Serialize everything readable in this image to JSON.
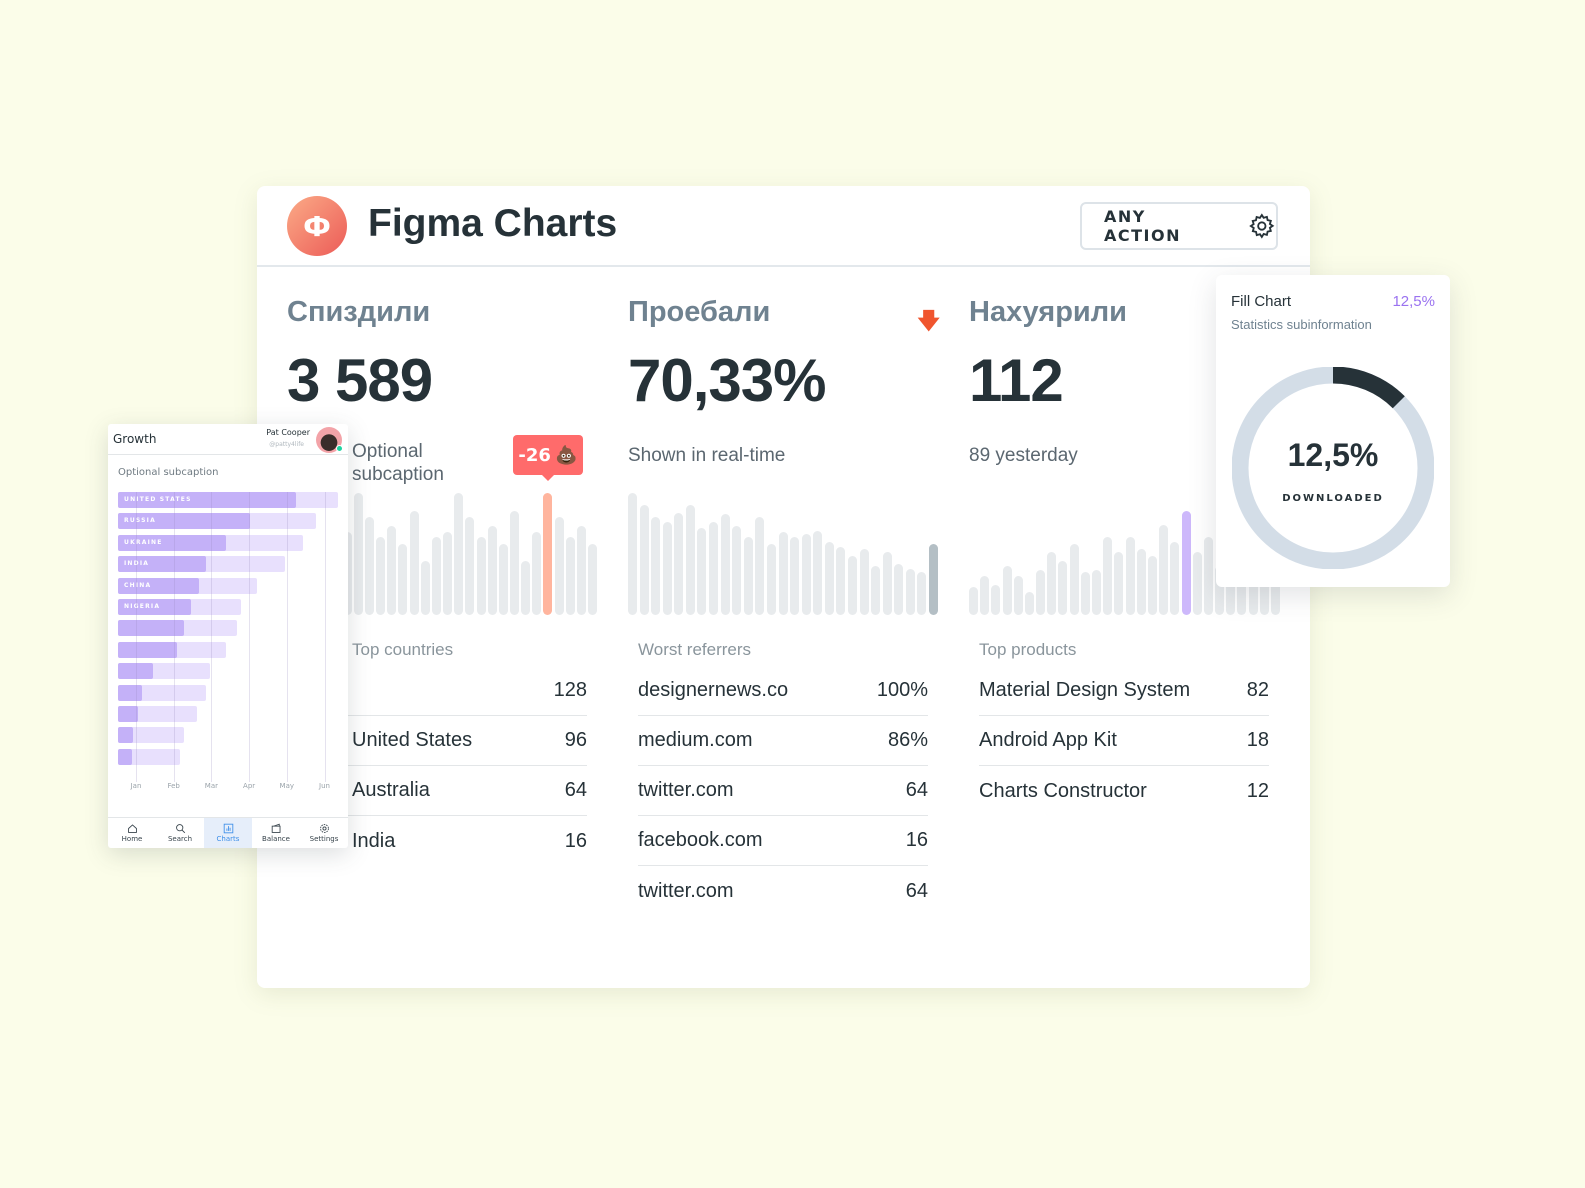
{
  "header": {
    "logo_letter": "Ф",
    "title": "Figma Charts",
    "action_label": "ANY ACTION",
    "action_icon": "gear-icon"
  },
  "columns": [
    {
      "title": "Спиздили",
      "value": "3 589",
      "caption": "Optional subcaption",
      "section_label": "Top countries",
      "tooltip": {
        "value": "-26",
        "emoji": "💩"
      },
      "highlight_index": 23,
      "highlight_color": "#ffb59e",
      "bars": [
        73,
        58,
        85,
        44,
        64,
        68,
        100,
        80,
        64,
        73,
        58,
        85,
        44,
        64,
        68,
        100,
        80,
        64,
        73,
        58,
        85,
        44,
        68,
        100,
        80,
        64,
        73,
        58
      ],
      "rows": [
        {
          "label": "",
          "value": "128"
        },
        {
          "label": "United States",
          "value": "96"
        },
        {
          "label": "Australia",
          "value": "64"
        },
        {
          "label": "India",
          "value": "16"
        }
      ]
    },
    {
      "title": "Проебали",
      "value": "70,33%",
      "caption": "Shown in real-time",
      "section_label": "Worst referrers",
      "trend_icon": "arrow-down-icon",
      "trend_color": "#f0552e",
      "highlight_index": 26,
      "highlight_color": "#b4bfc5",
      "bars": [
        100,
        90,
        80,
        76,
        84,
        90,
        71,
        76,
        83,
        73,
        64,
        80,
        58,
        68,
        64,
        66,
        69,
        60,
        56,
        48,
        54,
        40,
        52,
        42,
        38,
        35,
        58
      ],
      "rows": [
        {
          "label": "designernews.co",
          "value": "100%"
        },
        {
          "label": "medium.com",
          "value": "86%"
        },
        {
          "label": "twitter.com",
          "value": "64"
        },
        {
          "label": "facebook.com",
          "value": "16"
        },
        {
          "label": "twitter.com",
          "value": "64"
        }
      ]
    },
    {
      "title": "Нахуярили",
      "value": "112",
      "caption": "89 yesterday",
      "section_label": "Top products",
      "highlight_index": 19,
      "highlight_color": "#cdb8fb",
      "bars": [
        23,
        32,
        25,
        40,
        32,
        19,
        37,
        52,
        44,
        58,
        35,
        37,
        64,
        52,
        64,
        54,
        48,
        74,
        60,
        85,
        52,
        64,
        40,
        45,
        50,
        38,
        42,
        36
      ],
      "rows": [
        {
          "label": "Material Design System",
          "value": "82"
        },
        {
          "label": "Android App Kit",
          "value": "18"
        },
        {
          "label": "Charts Constructor",
          "value": "12"
        }
      ]
    }
  ],
  "fill_chart": {
    "title": "Fill Chart",
    "value": "12,5%",
    "subtitle": "Statistics subinformation",
    "center_value": "12,5%",
    "center_label": "DOWNLOADED",
    "percent": 12.5,
    "fill_color": "#263238",
    "track_color": "#d3dde7"
  },
  "mobile": {
    "title": "Growth",
    "user_name": "Pat Cooper",
    "user_handle": "@patty4life",
    "subcaption": "Optional subcaption",
    "chart_data": {
      "type": "bar",
      "orientation": "horizontal",
      "categories": [
        "UNITED STATES",
        "RUSSIA",
        "UKRAINE",
        "INDIA",
        "CHINA",
        "NIGERIA",
        "",
        "",
        "",
        "",
        "",
        "",
        ""
      ],
      "series": [
        {
          "values": [
            81,
            60,
            49,
            40,
            37,
            33,
            30,
            27,
            16,
            11,
            9,
            7,
            6.5
          ]
        },
        {
          "values": [
            100,
            90,
            84,
            76,
            63,
            56,
            54,
            49,
            42,
            40,
            36,
            30,
            28
          ]
        }
      ],
      "x_ticks": [
        "Jan",
        "Feb",
        "Mar",
        "Apr",
        "May",
        "Jun"
      ],
      "colors": [
        "#c4b1f8",
        "#e8e0fd"
      ]
    },
    "tabs": [
      {
        "label": "Home",
        "icon": "home-icon"
      },
      {
        "label": "Search",
        "icon": "search-icon"
      },
      {
        "label": "Charts",
        "icon": "chart-icon",
        "active": true
      },
      {
        "label": "Balance",
        "icon": "wallet-icon"
      },
      {
        "label": "Settings",
        "icon": "gear-icon"
      }
    ]
  }
}
